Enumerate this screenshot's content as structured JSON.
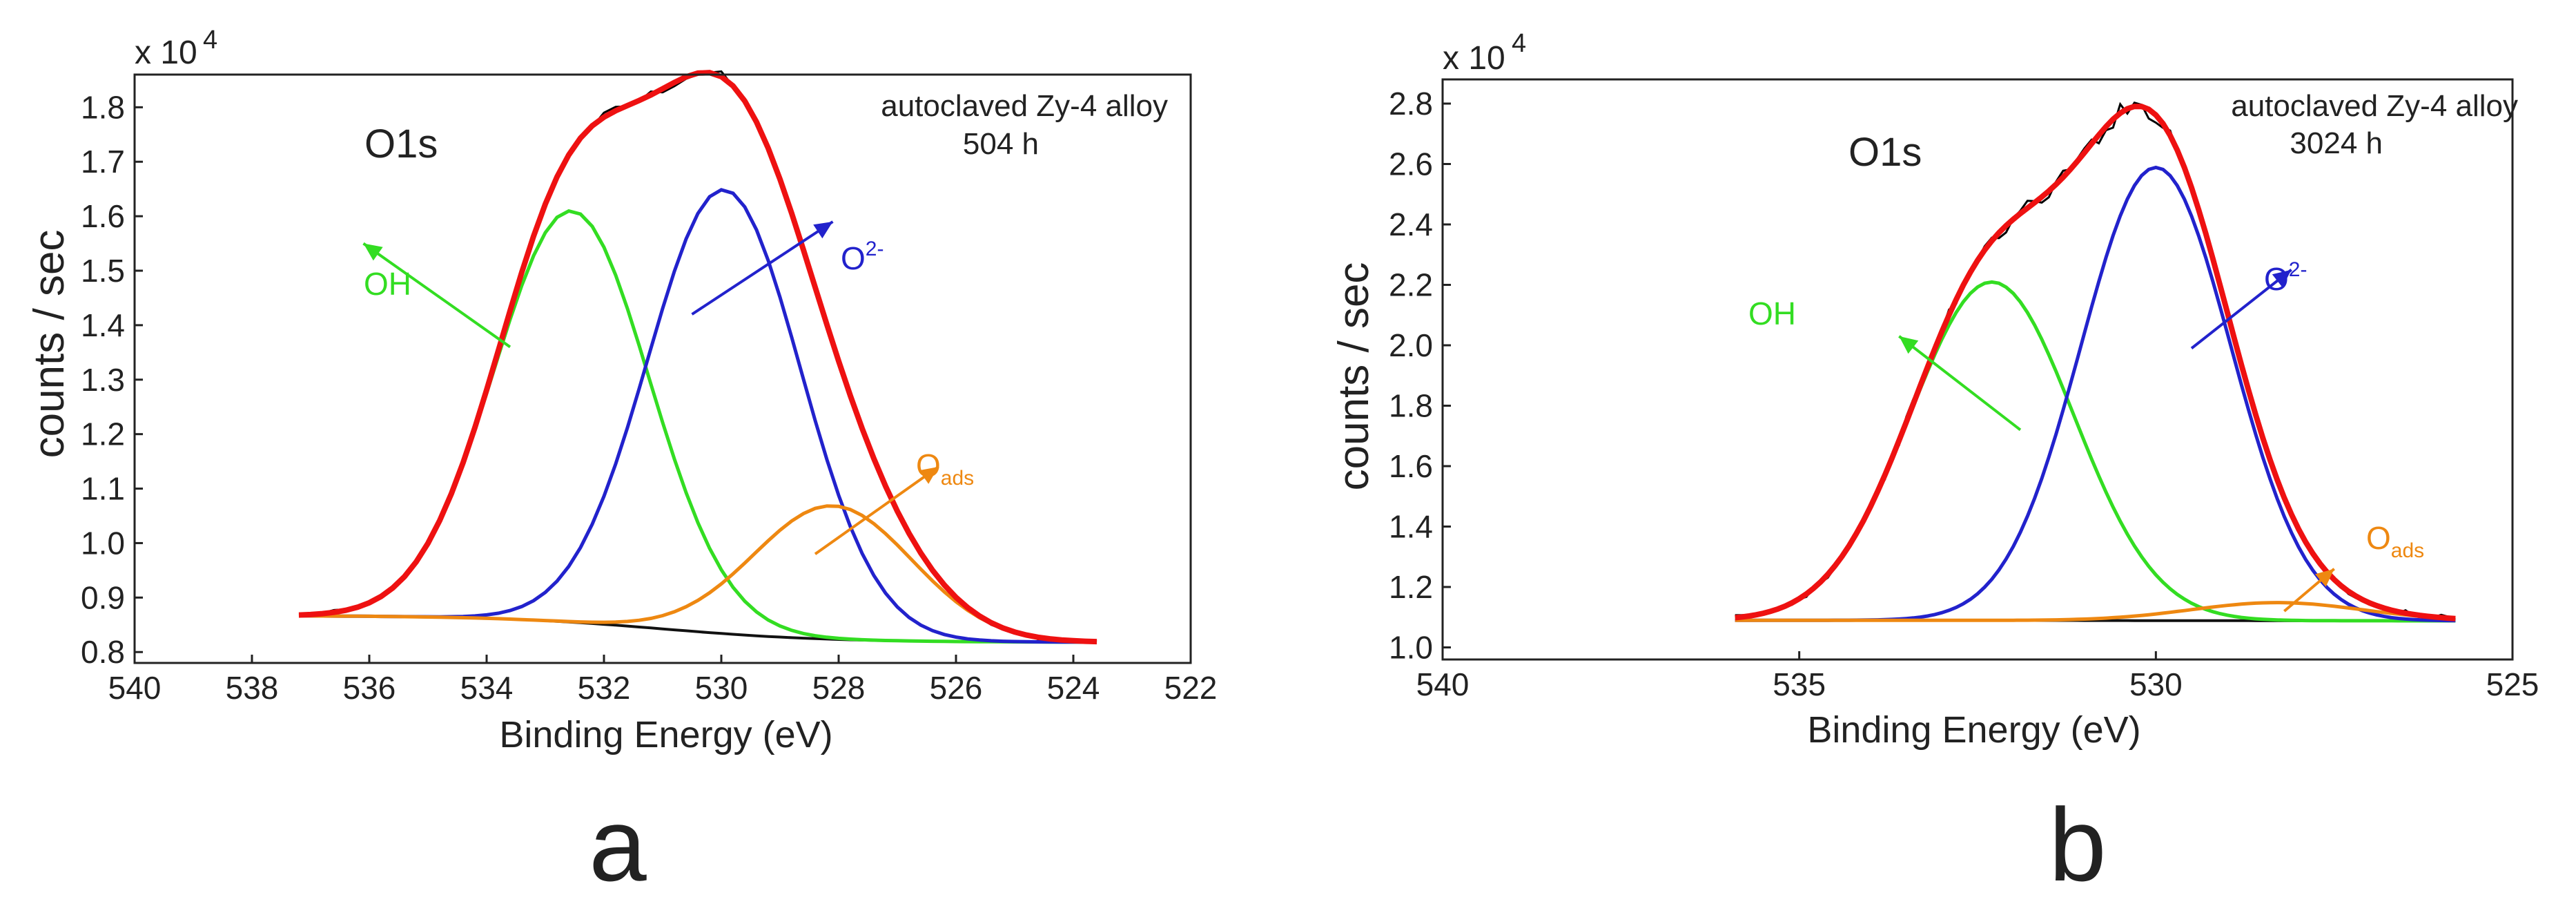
{
  "chart_data": [
    {
      "type": "line",
      "panel_label": "a",
      "xlabel": "Binding Energy (eV)",
      "ylabel": "counts / sec",
      "multiplier": "x 10",
      "exponent": "4",
      "xlim": [
        540,
        522
      ],
      "ylim": [
        0.78,
        1.86
      ],
      "xticks": [
        540,
        538,
        536,
        534,
        532,
        530,
        528,
        526,
        524,
        522
      ],
      "yticks": [
        0.8,
        0.9,
        1.0,
        1.1,
        1.2,
        1.3,
        1.4,
        1.5,
        1.6,
        1.7,
        1.8
      ],
      "x_range": [
        537.2,
        523.6
      ],
      "step": 0.2,
      "baseline": {
        "start": 0.867,
        "end": 0.818,
        "center": 531.0,
        "width": 1.4
      },
      "components": [
        {
          "name": "OH",
          "center": 532.55,
          "sigma": 1.32,
          "height": 0.755,
          "color": "#33dd22"
        },
        {
          "name": "O2-",
          "center": 529.95,
          "sigma": 1.3,
          "height": 0.815,
          "color": "#2222cc"
        },
        {
          "name": "Oads",
          "center": 528.1,
          "sigma": 1.35,
          "height": 0.245,
          "color": "#ee8811"
        }
      ],
      "envelope_color": "#ee1111",
      "raw_color": "#000000",
      "noise_amp": 0.006,
      "panel_title": "O1s",
      "annotation_line1": "autoclaved Zy-4 alloy",
      "annotation_line2": "504 h",
      "labels": {
        "oh": "OH",
        "o2_base": "O",
        "o2_sup": "2-",
        "oads_base": "O",
        "oads_sub": "ads"
      },
      "arrows": [
        {
          "name": "OH",
          "from": [
            533.6,
            1.36
          ],
          "to": [
            536.1,
            1.55
          ],
          "color": "#33dd22"
        },
        {
          "name": "O2-",
          "from": [
            530.5,
            1.42
          ],
          "to": [
            528.1,
            1.59
          ],
          "color": "#2222cc"
        },
        {
          "name": "Oads",
          "from": [
            528.4,
            0.98
          ],
          "to": [
            526.3,
            1.14
          ],
          "color": "#ee8811"
        }
      ]
    },
    {
      "type": "line",
      "panel_label": "b",
      "xlabel": "Binding Energy (eV)",
      "ylabel": "counts / sec",
      "multiplier": "x 10",
      "exponent": "4",
      "xlim": [
        540,
        525
      ],
      "ylim": [
        0.96,
        2.88
      ],
      "xticks": [
        540,
        535,
        530,
        525
      ],
      "yticks": [
        1.0,
        1.2,
        1.4,
        1.6,
        1.8,
        2.0,
        2.2,
        2.4,
        2.6,
        2.8
      ],
      "x_range": [
        535.9,
        525.8
      ],
      "step": 0.1,
      "baseline": {
        "start": 1.09,
        "end": 1.088,
        "center": 531.0,
        "width": 1.5
      },
      "components": [
        {
          "name": "OH",
          "center": 532.3,
          "sigma": 1.15,
          "height": 1.12,
          "color": "#33dd22"
        },
        {
          "name": "O2-",
          "center": 530.0,
          "sigma": 1.05,
          "height": 1.5,
          "color": "#2222cc"
        },
        {
          "name": "Oads",
          "center": 528.3,
          "sigma": 1.2,
          "height": 0.06,
          "color": "#ee8811"
        }
      ],
      "envelope_color": "#ee1111",
      "raw_color": "#000000",
      "noise_amp": 0.013,
      "panel_title": "O1s",
      "annotation_line1": "autoclaved Zy-4 alloy",
      "annotation_line2": "3024 h",
      "labels": {
        "oh": "OH",
        "o2_base": "O",
        "o2_sup": "2-",
        "oads_base": "O",
        "oads_sub": "ads"
      },
      "arrows": [
        {
          "name": "OH",
          "from": [
            531.9,
            1.72
          ],
          "to": [
            533.6,
            2.03
          ],
          "color": "#33dd22"
        },
        {
          "name": "O2-",
          "from": [
            529.5,
            1.99
          ],
          "to": [
            528.1,
            2.25
          ],
          "color": "#2222cc"
        },
        {
          "name": "Oads",
          "from": [
            528.2,
            1.12
          ],
          "to": [
            527.5,
            1.26
          ],
          "color": "#ee8811"
        }
      ]
    }
  ]
}
